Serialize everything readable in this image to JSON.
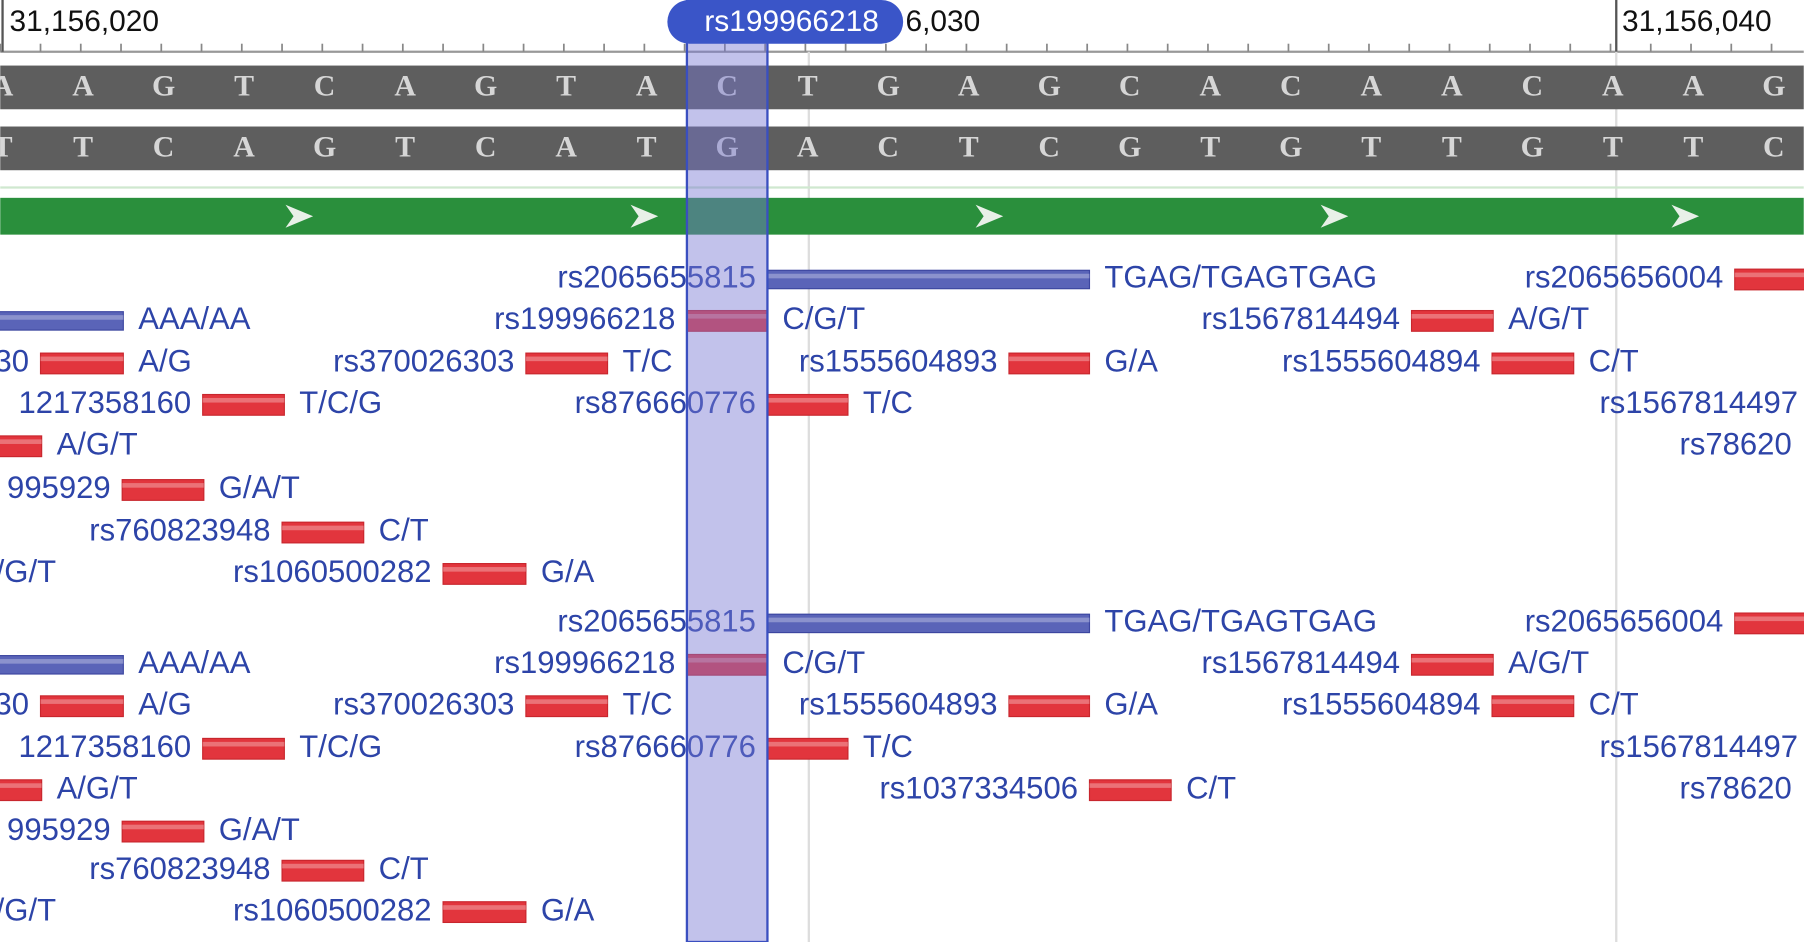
{
  "ruler": {
    "labels": [
      "31,156,020",
      "6,030",
      "31,156,040"
    ],
    "highlight_label": "rs199966218"
  },
  "sequence": {
    "forward": [
      "A",
      "A",
      "G",
      "T",
      "C",
      "A",
      "G",
      "T",
      "A",
      "C",
      "T",
      "G",
      "A",
      "G",
      "C",
      "A",
      "C",
      "A",
      "A",
      "C",
      "A",
      "A",
      "G"
    ],
    "reverse": [
      "T",
      "T",
      "C",
      "A",
      "G",
      "T",
      "C",
      "A",
      "T",
      "G",
      "A",
      "C",
      "T",
      "C",
      "G",
      "T",
      "G",
      "T",
      "T",
      "G",
      "T",
      "T",
      "C"
    ]
  },
  "variant_tracks": [
    {
      "rows": [
        [
          {
            "id": "rs2065655815",
            "alleles": "TGAG/TGAGTGAG"
          },
          {
            "id": "rs2065656004",
            "alleles": null
          }
        ],
        [
          {
            "id": null,
            "alleles": "AAA/AA"
          },
          {
            "id": "rs199966218",
            "alleles": "C/G/T"
          },
          {
            "id": "rs1567814494",
            "alleles": "A/G/T"
          }
        ],
        [
          {
            "id": "30",
            "alleles": "A/G"
          },
          {
            "id": "rs370026303",
            "alleles": "T/C"
          },
          {
            "id": "rs1555604893",
            "alleles": "G/A"
          },
          {
            "id": "rs1555604894",
            "alleles": "C/T"
          }
        ],
        [
          {
            "id": "1217358160",
            "alleles": "T/C/G"
          },
          {
            "id": "rs876660776",
            "alleles": "T/C"
          },
          {
            "id": "rs1567814497",
            "alleles": null
          }
        ],
        [
          {
            "id": null,
            "alleles": "A/G/T"
          },
          {
            "id": "rs78620",
            "alleles": null
          }
        ],
        [
          {
            "id": "995929",
            "alleles": "G/A/T"
          }
        ],
        [
          {
            "id": "rs760823948",
            "alleles": "C/T"
          }
        ],
        [
          {
            "id": null,
            "alleles": "/G/T"
          },
          {
            "id": "rs1060500282",
            "alleles": "G/A"
          }
        ]
      ]
    },
    {
      "rows": [
        [
          {
            "id": "rs2065655815",
            "alleles": "TGAG/TGAGTGAG"
          },
          {
            "id": "rs2065656004",
            "alleles": null
          }
        ],
        [
          {
            "id": null,
            "alleles": "AAA/AA"
          },
          {
            "id": "rs199966218",
            "alleles": "C/G/T"
          },
          {
            "id": "rs1567814494",
            "alleles": "A/G/T"
          }
        ],
        [
          {
            "id": "30",
            "alleles": "A/G"
          },
          {
            "id": "rs370026303",
            "alleles": "T/C"
          },
          {
            "id": "rs1555604893",
            "alleles": "G/A"
          },
          {
            "id": "rs1555604894",
            "alleles": "C/T"
          }
        ],
        [
          {
            "id": "1217358160",
            "alleles": "T/C/G"
          },
          {
            "id": "rs876660776",
            "alleles": "T/C"
          },
          {
            "id": "rs1567814497",
            "alleles": null
          }
        ],
        [
          {
            "id": null,
            "alleles": "A/G/T"
          },
          {
            "id": "rs1037334506",
            "alleles": "C/T"
          },
          {
            "id": "rs78620",
            "alleles": null
          }
        ],
        [
          {
            "id": "995929",
            "alleles": "G/A/T"
          }
        ],
        [
          {
            "id": "rs760823948",
            "alleles": "C/T"
          }
        ],
        [
          {
            "id": null,
            "alleles": "/G/T"
          },
          {
            "id": "rs1060500282",
            "alleles": "G/A"
          }
        ]
      ]
    }
  ]
}
